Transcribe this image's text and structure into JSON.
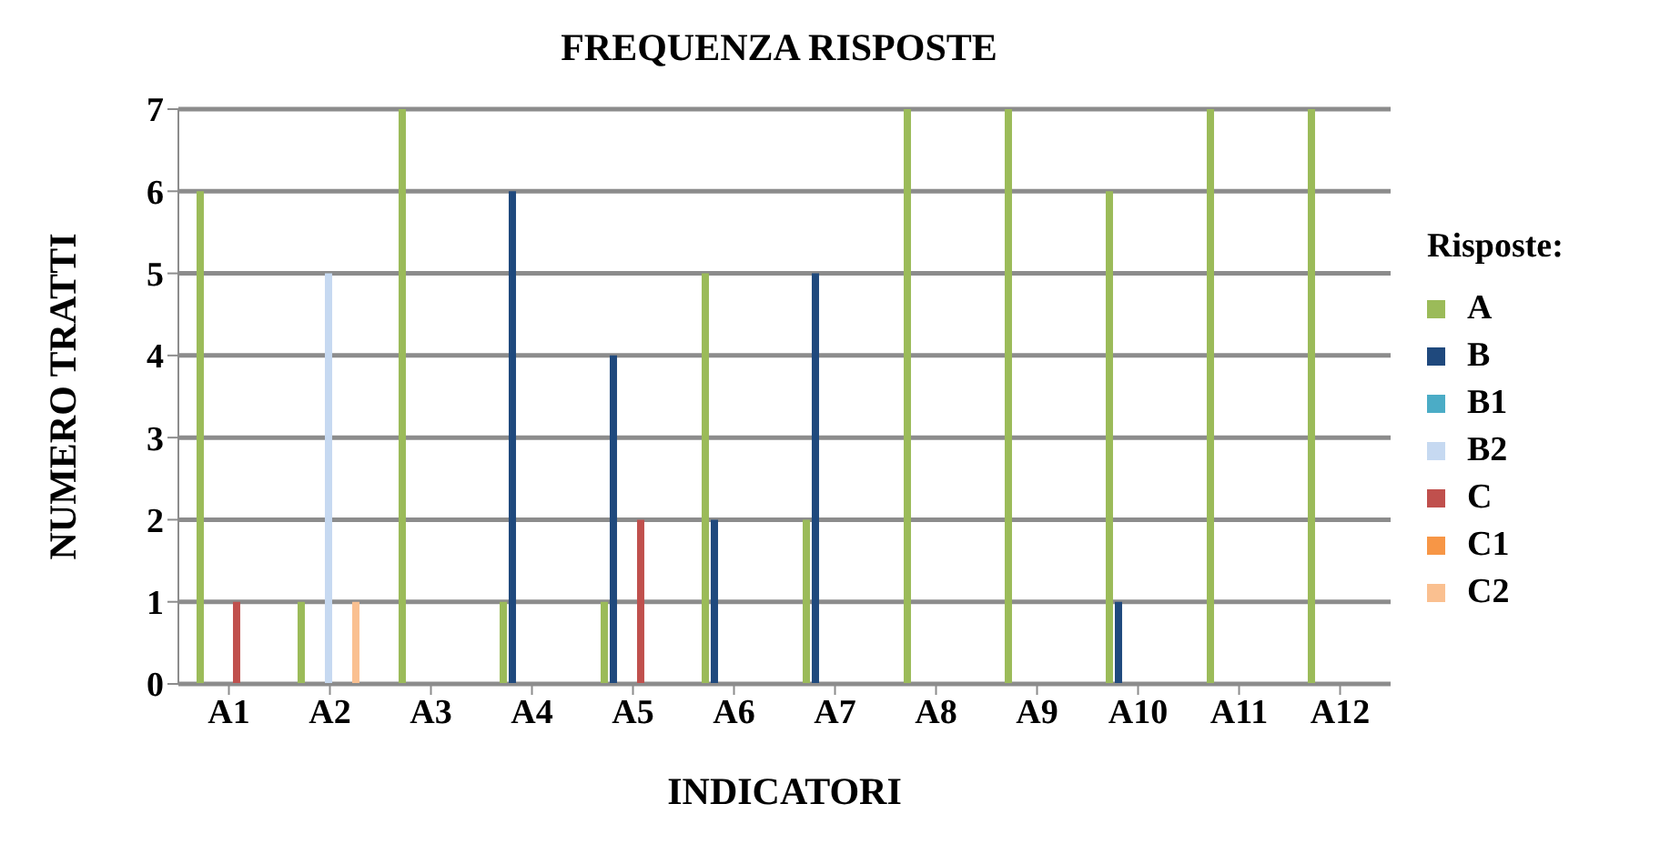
{
  "chart_data": {
    "type": "bar",
    "title": "FREQUENZA RISPOSTE",
    "xlabel": "INDICATORI",
    "ylabel": "NUMERO  TRATTI",
    "legend_title": "Risposte:",
    "categories": [
      "A1",
      "A2",
      "A3",
      "A4",
      "A5",
      "A6",
      "A7",
      "A8",
      "A9",
      "A10",
      "A11",
      "A12"
    ],
    "series": [
      {
        "name": "A",
        "color": "#9bbb59",
        "values": [
          6,
          1,
          7,
          1,
          1,
          5,
          2,
          7,
          7,
          6,
          7,
          7
        ]
      },
      {
        "name": "B",
        "color": "#1f497d",
        "values": [
          0,
          0,
          0,
          6,
          4,
          2,
          5,
          0,
          0,
          1,
          0,
          0
        ]
      },
      {
        "name": "B1",
        "color": "#4bacc6",
        "values": [
          0,
          0,
          0,
          0,
          0,
          0,
          0,
          0,
          0,
          0,
          0,
          0
        ]
      },
      {
        "name": "B2",
        "color": "#c6d9f1",
        "values": [
          0,
          5,
          0,
          0,
          0,
          0,
          0,
          0,
          0,
          0,
          0,
          0
        ]
      },
      {
        "name": "C",
        "color": "#c0504d",
        "values": [
          1,
          0,
          0,
          0,
          2,
          0,
          0,
          0,
          0,
          0,
          0,
          0
        ]
      },
      {
        "name": "C1",
        "color": "#f79646",
        "values": [
          0,
          0,
          0,
          0,
          0,
          0,
          0,
          0,
          0,
          0,
          0,
          0
        ]
      },
      {
        "name": "C2",
        "color": "#fac090",
        "values": [
          0,
          1,
          0,
          0,
          0,
          0,
          0,
          0,
          0,
          0,
          0,
          0
        ]
      }
    ],
    "ylim": [
      0,
      7
    ],
    "yticks": [
      0,
      1,
      2,
      3,
      4,
      5,
      6,
      7
    ],
    "grid": "y",
    "legend": "right"
  }
}
